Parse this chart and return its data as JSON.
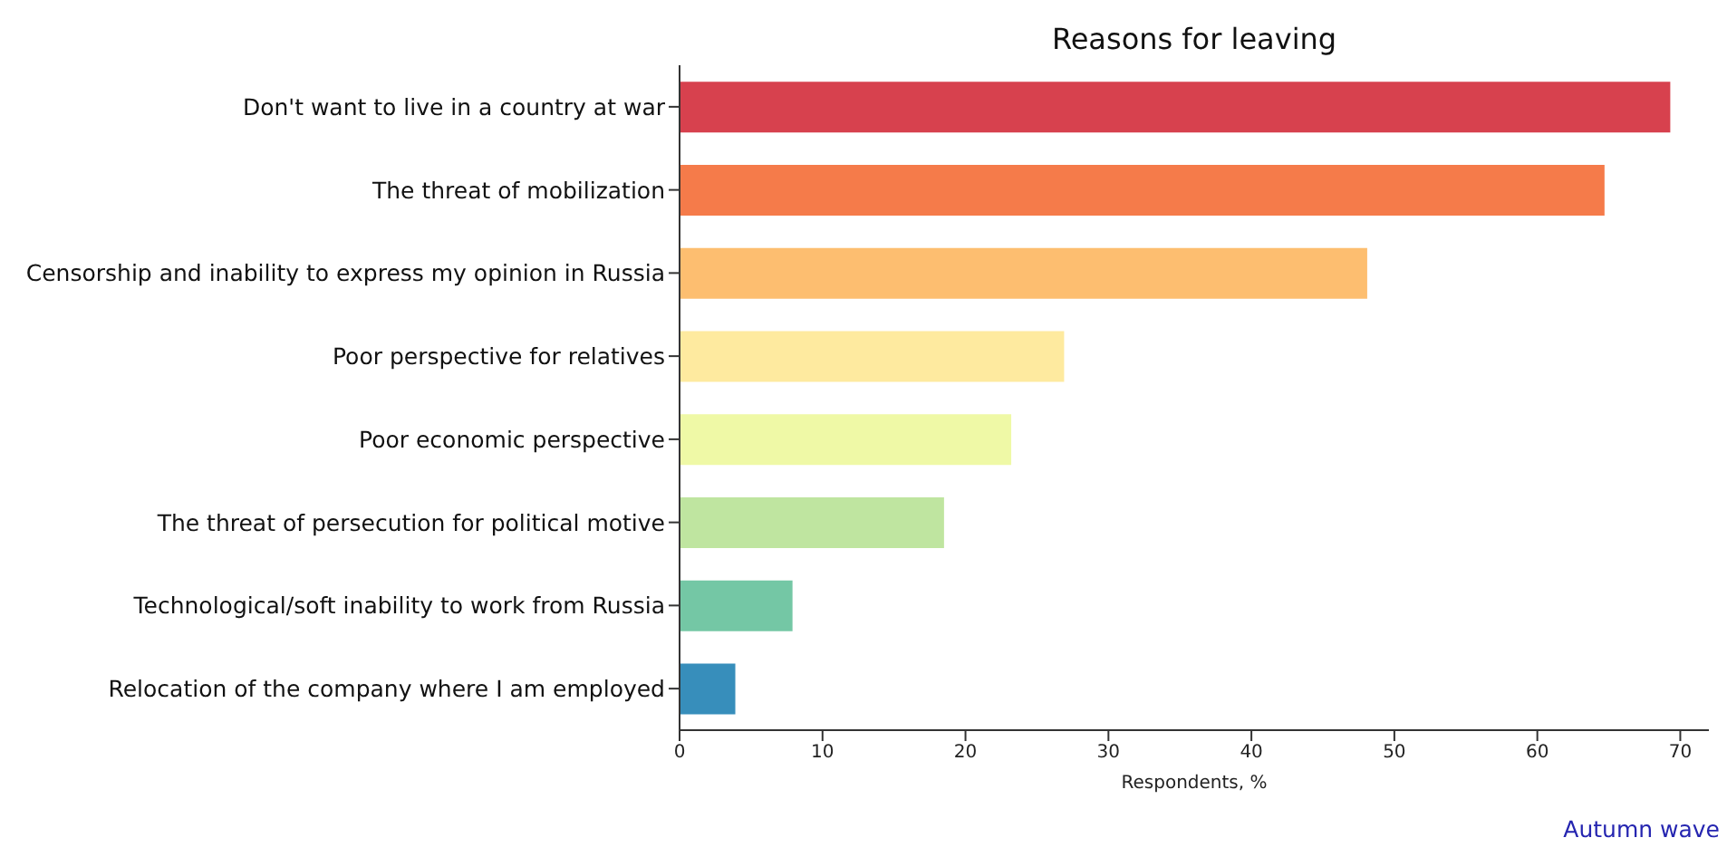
{
  "chart_data": {
    "type": "bar",
    "orientation": "horizontal",
    "title": "Reasons for leaving",
    "xlabel": "Respondents, %",
    "categories": [
      "Don't want to live in a country at war",
      "The threat of mobilization",
      "Censorship and inability to express my opinion in Russia",
      "Poor perspective for relatives",
      "Poor economic perspective",
      "The threat of persecution for political motive",
      "Technological/soft inability to work from Russia",
      "Relocation of the company where I am employed"
    ],
    "values": [
      69.3,
      64.7,
      48.1,
      26.9,
      23.2,
      18.5,
      7.9,
      3.9
    ],
    "colors": [
      "#d7414e",
      "#f57b4a",
      "#fdbe70",
      "#feea9f",
      "#eff9a6",
      "#bfe5a0",
      "#74c7a5",
      "#378ebb"
    ],
    "xlim": [
      0,
      72
    ],
    "xticks": [
      0,
      10,
      20,
      30,
      40,
      50,
      60,
      70
    ],
    "grid": false,
    "annotations": [
      "Autumn wave"
    ]
  }
}
